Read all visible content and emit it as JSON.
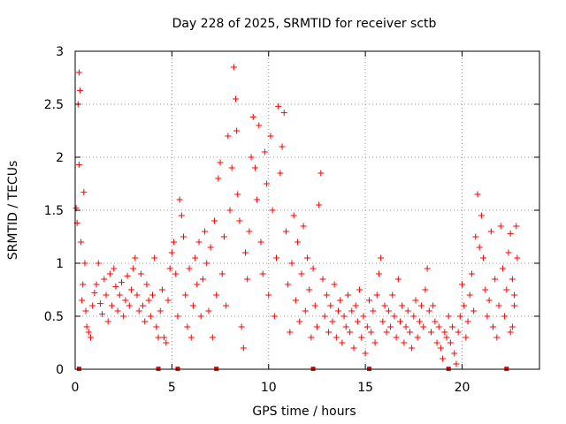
{
  "chart_data": {
    "type": "scatter",
    "title": "Day 228 of 2025, SRMTID for receiver sctb",
    "xlabel": "GPS time / hours",
    "ylabel": "SRMTID / TECUs",
    "xlim": [
      0,
      24
    ],
    "ylim": [
      0,
      3
    ],
    "x_ticks": [
      0,
      5,
      10,
      15,
      20
    ],
    "y_ticks": [
      0,
      0.5,
      1,
      1.5,
      2,
      2.5,
      3
    ],
    "x_tick_labels": [
      "0",
      "5",
      "10",
      "15",
      "20"
    ],
    "y_tick_labels": [
      "0",
      "0.5",
      "1",
      "1.5",
      "2",
      "2.5",
      "3"
    ],
    "grid": true,
    "marker": "+",
    "color": "#ff0000",
    "series": [
      {
        "name": "SRMTID",
        "points": [
          [
            0.05,
            1.52
          ],
          [
            0.1,
            1.38
          ],
          [
            0.15,
            2.5
          ],
          [
            0.2,
            2.8
          ],
          [
            0.25,
            2.63
          ],
          [
            0.2,
            1.93
          ],
          [
            0.3,
            1.2
          ],
          [
            0.45,
            1.67
          ],
          [
            0.5,
            1.0
          ],
          [
            0.4,
            0.8
          ],
          [
            0.35,
            0.65
          ],
          [
            0.55,
            0.55
          ],
          [
            0.6,
            0.4
          ],
          [
            0.7,
            0.35
          ],
          [
            0.8,
            0.3
          ],
          [
            0.9,
            0.6
          ],
          [
            1.0,
            0.72
          ],
          [
            1.1,
            0.8
          ],
          [
            1.2,
            1.0
          ],
          [
            1.3,
            0.62
          ],
          [
            1.4,
            0.52
          ],
          [
            1.5,
            0.85
          ],
          [
            1.6,
            0.7
          ],
          [
            1.7,
            0.45
          ],
          [
            1.8,
            0.9
          ],
          [
            1.9,
            0.6
          ],
          [
            2.0,
            0.95
          ],
          [
            2.1,
            0.78
          ],
          [
            2.2,
            0.55
          ],
          [
            2.3,
            0.7
          ],
          [
            2.4,
            0.82
          ],
          [
            2.5,
            0.5
          ],
          [
            2.6,
            0.65
          ],
          [
            2.7,
            0.88
          ],
          [
            2.8,
            0.6
          ],
          [
            2.9,
            0.75
          ],
          [
            3.0,
            0.95
          ],
          [
            3.1,
            1.05
          ],
          [
            3.2,
            0.7
          ],
          [
            3.3,
            0.55
          ],
          [
            3.4,
            0.9
          ],
          [
            3.5,
            0.6
          ],
          [
            3.6,
            0.45
          ],
          [
            3.7,
            0.8
          ],
          [
            3.8,
            0.65
          ],
          [
            3.9,
            0.5
          ],
          [
            4.0,
            0.7
          ],
          [
            4.1,
            1.05
          ],
          [
            4.2,
            0.4
          ],
          [
            4.3,
            0.3
          ],
          [
            4.4,
            0.55
          ],
          [
            4.5,
            0.75
          ],
          [
            4.6,
            0.3
          ],
          [
            4.7,
            0.25
          ],
          [
            4.8,
            0.65
          ],
          [
            4.9,
            0.95
          ],
          [
            5.0,
            1.1
          ],
          [
            5.1,
            1.2
          ],
          [
            5.2,
            0.9
          ],
          [
            5.3,
            0.5
          ],
          [
            5.4,
            1.6
          ],
          [
            5.5,
            1.45
          ],
          [
            5.6,
            1.25
          ],
          [
            5.7,
            0.7
          ],
          [
            5.8,
            0.4
          ],
          [
            5.9,
            0.95
          ],
          [
            6.0,
            0.3
          ],
          [
            6.1,
            0.6
          ],
          [
            6.2,
            1.05
          ],
          [
            6.3,
            0.8
          ],
          [
            6.4,
            1.2
          ],
          [
            6.5,
            0.5
          ],
          [
            6.6,
            0.85
          ],
          [
            6.7,
            1.3
          ],
          [
            6.8,
            1.0
          ],
          [
            6.9,
            0.55
          ],
          [
            7.0,
            1.15
          ],
          [
            7.1,
            0.3
          ],
          [
            7.2,
            1.4
          ],
          [
            7.3,
            0.7
          ],
          [
            7.4,
            1.8
          ],
          [
            7.5,
            1.95
          ],
          [
            7.6,
            0.9
          ],
          [
            7.7,
            1.25
          ],
          [
            7.8,
            0.6
          ],
          [
            7.9,
            2.2
          ],
          [
            8.0,
            1.5
          ],
          [
            8.1,
            1.9
          ],
          [
            8.2,
            2.85
          ],
          [
            8.3,
            2.55
          ],
          [
            8.35,
            2.25
          ],
          [
            8.4,
            1.65
          ],
          [
            8.5,
            1.4
          ],
          [
            8.6,
            0.4
          ],
          [
            8.7,
            0.2
          ],
          [
            8.8,
            1.1
          ],
          [
            8.9,
            0.85
          ],
          [
            9.0,
            1.3
          ],
          [
            9.1,
            2.0
          ],
          [
            9.2,
            2.38
          ],
          [
            9.3,
            1.9
          ],
          [
            9.4,
            1.6
          ],
          [
            9.5,
            2.3
          ],
          [
            9.6,
            1.2
          ],
          [
            9.7,
            0.9
          ],
          [
            9.8,
            2.05
          ],
          [
            9.9,
            1.75
          ],
          [
            10.0,
            0.7
          ],
          [
            10.1,
            2.2
          ],
          [
            10.2,
            1.5
          ],
          [
            10.3,
            0.5
          ],
          [
            10.4,
            1.05
          ],
          [
            10.5,
            2.48
          ],
          [
            10.6,
            1.85
          ],
          [
            10.7,
            2.1
          ],
          [
            10.8,
            2.42
          ],
          [
            10.9,
            1.3
          ],
          [
            11.0,
            0.8
          ],
          [
            11.1,
            0.35
          ],
          [
            11.2,
            1.0
          ],
          [
            11.3,
            1.45
          ],
          [
            11.4,
            0.65
          ],
          [
            11.5,
            1.2
          ],
          [
            11.6,
            0.45
          ],
          [
            11.7,
            0.9
          ],
          [
            11.8,
            1.35
          ],
          [
            11.9,
            0.55
          ],
          [
            12.0,
            1.05
          ],
          [
            12.1,
            0.75
          ],
          [
            12.2,
            0.3
          ],
          [
            12.3,
            0.95
          ],
          [
            12.4,
            0.6
          ],
          [
            12.5,
            0.4
          ],
          [
            12.6,
            1.55
          ],
          [
            12.7,
            1.85
          ],
          [
            12.8,
            0.85
          ],
          [
            12.9,
            0.5
          ],
          [
            13.0,
            0.7
          ],
          [
            13.1,
            0.35
          ],
          [
            13.2,
            0.6
          ],
          [
            13.3,
            0.45
          ],
          [
            13.4,
            0.8
          ],
          [
            13.5,
            0.3
          ],
          [
            13.6,
            0.55
          ],
          [
            13.7,
            0.65
          ],
          [
            13.8,
            0.25
          ],
          [
            13.9,
            0.5
          ],
          [
            14.0,
            0.4
          ],
          [
            14.1,
            0.7
          ],
          [
            14.2,
            0.35
          ],
          [
            14.3,
            0.55
          ],
          [
            14.4,
            0.2
          ],
          [
            14.5,
            0.6
          ],
          [
            14.6,
            0.45
          ],
          [
            14.7,
            0.75
          ],
          [
            14.8,
            0.3
          ],
          [
            14.9,
            0.5
          ],
          [
            15.0,
            0.15
          ],
          [
            15.1,
            0.4
          ],
          [
            15.2,
            0.65
          ],
          [
            15.3,
            0.35
          ],
          [
            15.4,
            0.55
          ],
          [
            15.5,
            0.25
          ],
          [
            15.6,
            0.7
          ],
          [
            15.7,
            0.9
          ],
          [
            15.8,
            1.05
          ],
          [
            15.9,
            0.45
          ],
          [
            16.0,
            0.6
          ],
          [
            16.1,
            0.35
          ],
          [
            16.2,
            0.55
          ],
          [
            16.3,
            0.4
          ],
          [
            16.4,
            0.7
          ],
          [
            16.5,
            0.5
          ],
          [
            16.6,
            0.3
          ],
          [
            16.7,
            0.85
          ],
          [
            16.8,
            0.45
          ],
          [
            16.9,
            0.6
          ],
          [
            17.0,
            0.25
          ],
          [
            17.1,
            0.4
          ],
          [
            17.2,
            0.55
          ],
          [
            17.3,
            0.35
          ],
          [
            17.4,
            0.2
          ],
          [
            17.5,
            0.5
          ],
          [
            17.6,
            0.65
          ],
          [
            17.7,
            0.3
          ],
          [
            17.8,
            0.45
          ],
          [
            17.9,
            0.6
          ],
          [
            18.0,
            0.4
          ],
          [
            18.1,
            0.75
          ],
          [
            18.2,
            0.95
          ],
          [
            18.3,
            0.55
          ],
          [
            18.4,
            0.35
          ],
          [
            18.5,
            0.6
          ],
          [
            18.6,
            0.45
          ],
          [
            18.7,
            0.25
          ],
          [
            18.8,
            0.4
          ],
          [
            18.9,
            0.2
          ],
          [
            19.0,
            0.1
          ],
          [
            19.1,
            0.35
          ],
          [
            19.2,
            0.3
          ],
          [
            19.3,
            0.5
          ],
          [
            19.4,
            0.25
          ],
          [
            19.5,
            0.4
          ],
          [
            19.6,
            0.15
          ],
          [
            19.7,
            0.05
          ],
          [
            19.8,
            0.35
          ],
          [
            19.9,
            0.5
          ],
          [
            20.0,
            0.8
          ],
          [
            20.1,
            0.6
          ],
          [
            20.2,
            0.3
          ],
          [
            20.3,
            0.45
          ],
          [
            20.4,
            0.7
          ],
          [
            20.5,
            0.9
          ],
          [
            20.6,
            0.55
          ],
          [
            20.7,
            1.25
          ],
          [
            20.8,
            1.65
          ],
          [
            20.9,
            1.15
          ],
          [
            21.0,
            1.45
          ],
          [
            21.1,
            1.05
          ],
          [
            21.2,
            0.75
          ],
          [
            21.3,
            0.5
          ],
          [
            21.4,
            0.65
          ],
          [
            21.5,
            1.3
          ],
          [
            21.6,
            0.4
          ],
          [
            21.7,
            0.85
          ],
          [
            21.8,
            0.3
          ],
          [
            21.9,
            0.6
          ],
          [
            22.0,
            1.35
          ],
          [
            22.1,
            0.95
          ],
          [
            22.2,
            0.5
          ],
          [
            22.3,
            0.75
          ],
          [
            22.4,
            1.1
          ],
          [
            22.5,
            1.28
          ],
          [
            22.6,
            0.4
          ],
          [
            22.7,
            0.6
          ],
          [
            22.8,
            1.35
          ],
          [
            22.85,
            1.05
          ],
          [
            22.6,
            0.85
          ],
          [
            22.5,
            0.35
          ],
          [
            22.7,
            0.7
          ]
        ]
      }
    ],
    "baseline_markers_x": [
      0.2,
      4.3,
      5.3,
      7.3,
      12.3,
      15.2,
      19.3,
      22.3
    ]
  }
}
